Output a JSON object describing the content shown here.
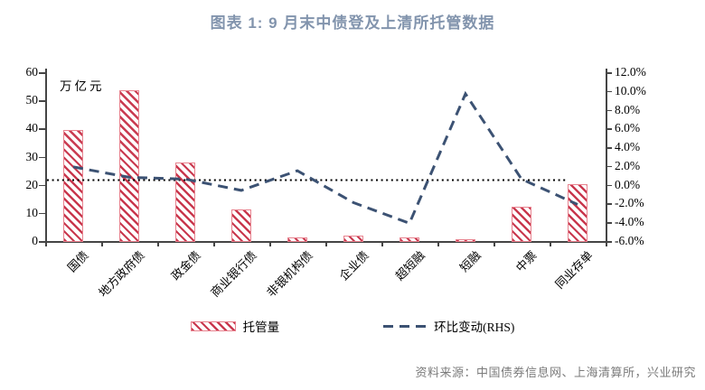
{
  "title": "图表 1:  9 月末中债登及上清所托管数据",
  "source": "资料来源：中国债券信息网、上海清算所，兴业研究",
  "colors": {
    "title": "#8294ad",
    "bar_stripe": "#c9394f",
    "bar_border": "#e8838f",
    "bar_fill": "#ffffff",
    "line": "#3c5273",
    "reference_line": "#000000",
    "axis": "#454545",
    "source_text": "#7b7b7b"
  },
  "chart_data": {
    "type": "combo-bar-line",
    "categories": [
      "国债",
      "地方政府债",
      "政金债",
      "商业银行债",
      "非银机构债",
      "企业债",
      "超短融",
      "短融",
      "中票",
      "同业存单"
    ],
    "series": [
      {
        "name": "托管量",
        "type": "bar",
        "axis": "left",
        "unit": "万亿元",
        "values": [
          39.4,
          53.5,
          27.8,
          11.3,
          1.4,
          2.0,
          1.3,
          0.5,
          12.3,
          20.1
        ]
      },
      {
        "name": "环比变动(RHS)",
        "type": "line",
        "style": "dashed",
        "axis": "right",
        "unit": "%",
        "values": [
          1.9,
          0.8,
          0.6,
          -0.6,
          1.5,
          -1.9,
          -4.1,
          9.7,
          0.6,
          -2.1
        ]
      }
    ],
    "reference_line": {
      "axis": "right",
      "value": 0.5,
      "style": "dotted"
    },
    "left_axis": {
      "title": "万亿元",
      "min": 0,
      "max": 60,
      "step": 10,
      "tick_labels": [
        "0",
        "10",
        "20",
        "30",
        "40",
        "50",
        "60"
      ]
    },
    "right_axis": {
      "min": -6,
      "max": 12,
      "step": 2,
      "tick_labels": [
        "12.0%",
        "10.0%",
        "8.0%",
        "6.0%",
        "4.0%",
        "2.0%",
        "0.0%",
        "-2.0%",
        "-4.0%",
        "-6.0%"
      ]
    },
    "grid": false,
    "legend_position": "bottom",
    "legend": [
      {
        "label": "托管量",
        "swatch": "hatched-bar"
      },
      {
        "label": "环比变动(RHS)",
        "swatch": "dashed-line"
      }
    ]
  }
}
